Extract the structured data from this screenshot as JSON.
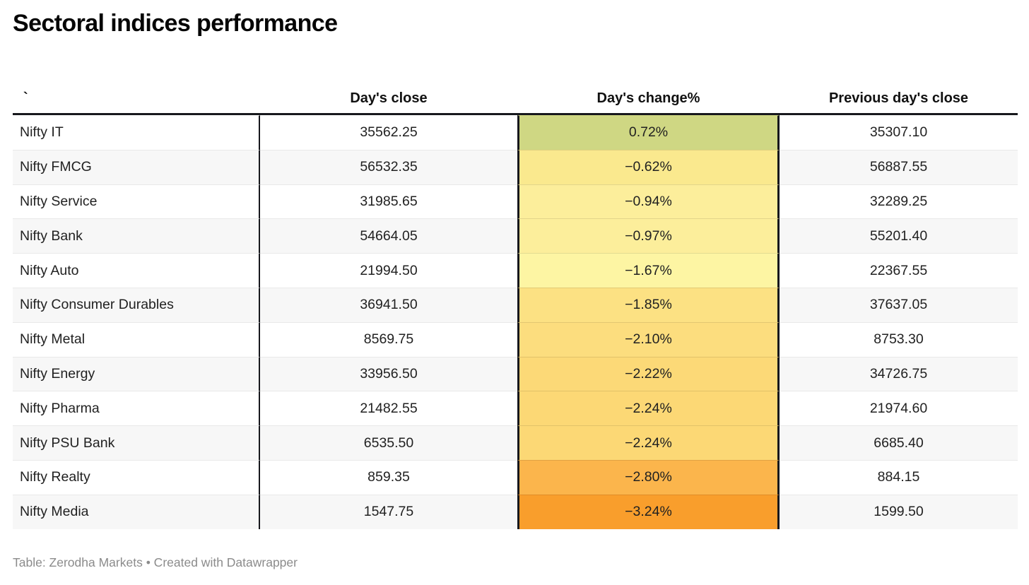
{
  "title": "Sectoral indices performance",
  "table": {
    "columns": [
      {
        "label": "`"
      },
      {
        "label": "Day's close"
      },
      {
        "label": "Day's change%"
      },
      {
        "label": "Previous day's close"
      }
    ],
    "rows": [
      {
        "name": "Nifty IT",
        "close": "35562.25",
        "change": "0.72%",
        "prev": "35307.10",
        "color": "#cfd783"
      },
      {
        "name": "Nifty FMCG",
        "close": "56532.35",
        "change": "−0.62%",
        "prev": "56887.55",
        "color": "#fae98e"
      },
      {
        "name": "Nifty Service",
        "close": "31985.65",
        "change": "−0.94%",
        "prev": "32289.25",
        "color": "#fcee9b"
      },
      {
        "name": "Nifty Bank",
        "close": "54664.05",
        "change": "−0.97%",
        "prev": "55201.40",
        "color": "#fcee9b"
      },
      {
        "name": "Nifty Auto",
        "close": "21994.50",
        "change": "−1.67%",
        "prev": "22367.55",
        "color": "#fdf5a3"
      },
      {
        "name": "Nifty Consumer Durables",
        "close": "36941.50",
        "change": "−1.85%",
        "prev": "37637.05",
        "color": "#fce183"
      },
      {
        "name": "Nifty Metal",
        "close": "8569.75",
        "change": "−2.10%",
        "prev": "8753.30",
        "color": "#fcdd7e"
      },
      {
        "name": "Nifty Energy",
        "close": "33956.50",
        "change": "−2.22%",
        "prev": "34726.75",
        "color": "#fcd977"
      },
      {
        "name": "Nifty Pharma",
        "close": "21482.55",
        "change": "−2.24%",
        "prev": "21974.60",
        "color": "#fcd875"
      },
      {
        "name": "Nifty PSU Bank",
        "close": "6535.50",
        "change": "−2.24%",
        "prev": "6685.40",
        "color": "#fcd875"
      },
      {
        "name": "Nifty Realty",
        "close": "859.35",
        "change": "−2.80%",
        "prev": "884.15",
        "color": "#fbb54c"
      },
      {
        "name": "Nifty Media",
        "close": "1547.75",
        "change": "−3.24%",
        "prev": "1599.50",
        "color": "#f99e2c"
      }
    ]
  },
  "footer": "Table: Zerodha Markets • Created with Datawrapper",
  "style_colors": {
    "positive_cell": "#cfd783",
    "most_negative_cell": "#f99e2c",
    "row_alt_background": "#f7f7f7",
    "heavy_border": "#17181d"
  },
  "chart_data": {
    "type": "table",
    "title": "Sectoral indices performance",
    "columns": [
      "`",
      "Day's close",
      "Day's change%",
      "Previous day's close"
    ],
    "heatmap_column": "Day's change%",
    "rows": [
      [
        "Nifty IT",
        35562.25,
        0.72,
        35307.1
      ],
      [
        "Nifty FMCG",
        56532.35,
        -0.62,
        56887.55
      ],
      [
        "Nifty Service",
        31985.65,
        -0.94,
        32289.25
      ],
      [
        "Nifty Bank",
        54664.05,
        -0.97,
        55201.4
      ],
      [
        "Nifty Auto",
        21994.5,
        -1.67,
        22367.55
      ],
      [
        "Nifty Consumer Durables",
        36941.5,
        -1.85,
        37637.05
      ],
      [
        "Nifty Metal",
        8569.75,
        -2.1,
        8753.3
      ],
      [
        "Nifty Energy",
        33956.5,
        -2.22,
        34726.75
      ],
      [
        "Nifty Pharma",
        21482.55,
        -2.24,
        21974.6
      ],
      [
        "Nifty PSU Bank",
        6535.5,
        -2.24,
        6685.4
      ],
      [
        "Nifty Realty",
        859.35,
        -2.8,
        884.15
      ],
      [
        "Nifty Media",
        1547.75,
        -3.24,
        1599.5
      ]
    ],
    "notes": "Table: Zerodha Markets • Created with Datawrapper"
  }
}
